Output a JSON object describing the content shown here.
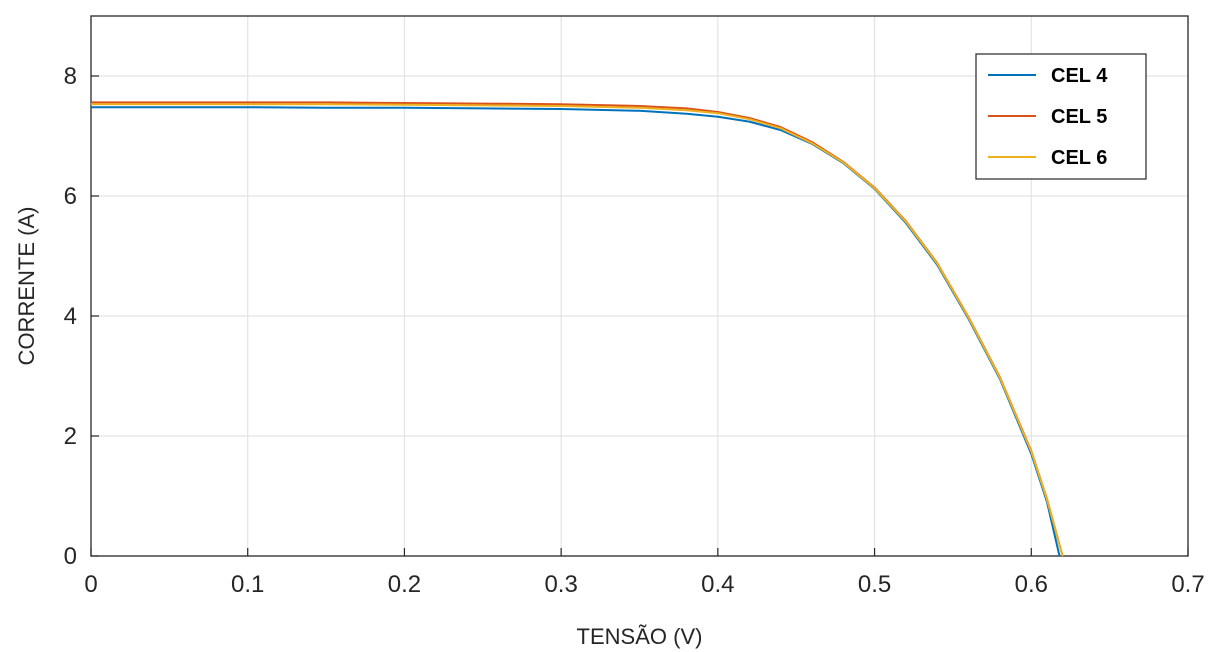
{
  "chart_data": {
    "type": "line",
    "xlabel": "TENSÃO (V)",
    "ylabel": "CORRENTE (A)",
    "xlim": [
      0,
      0.7
    ],
    "ylim": [
      0,
      9
    ],
    "xticks": [
      0,
      0.1,
      0.2,
      0.3,
      0.4,
      0.5,
      0.6,
      0.7
    ],
    "yticks": [
      0,
      2,
      4,
      6,
      8
    ],
    "xtick_labels": [
      "0",
      "0.1",
      "0.2",
      "0.3",
      "0.4",
      "0.5",
      "0.6",
      "0.7"
    ],
    "ytick_labels": [
      "0",
      "2",
      "4",
      "6",
      "8"
    ],
    "grid": true,
    "legend_position": "top-right",
    "series": [
      {
        "name": "CEL 4",
        "color": "#0072BD",
        "x": [
          0,
          0.05,
          0.1,
          0.15,
          0.2,
          0.25,
          0.3,
          0.35,
          0.38,
          0.4,
          0.42,
          0.44,
          0.46,
          0.48,
          0.5,
          0.52,
          0.54,
          0.56,
          0.58,
          0.6,
          0.61,
          0.618
        ],
        "y": [
          7.48,
          7.48,
          7.48,
          7.47,
          7.47,
          7.46,
          7.45,
          7.42,
          7.37,
          7.32,
          7.24,
          7.1,
          6.87,
          6.55,
          6.12,
          5.55,
          4.85,
          3.95,
          2.95,
          1.7,
          0.9,
          0
        ]
      },
      {
        "name": "CEL 5",
        "color": "#D95319",
        "x": [
          0,
          0.05,
          0.1,
          0.15,
          0.2,
          0.25,
          0.3,
          0.35,
          0.38,
          0.4,
          0.42,
          0.44,
          0.46,
          0.48,
          0.5,
          0.52,
          0.54,
          0.56,
          0.58,
          0.6,
          0.61,
          0.62
        ],
        "y": [
          7.56,
          7.56,
          7.56,
          7.56,
          7.55,
          7.54,
          7.53,
          7.5,
          7.46,
          7.4,
          7.3,
          7.15,
          6.9,
          6.57,
          6.14,
          5.58,
          4.88,
          3.98,
          2.98,
          1.75,
          0.95,
          0
        ]
      },
      {
        "name": "CEL 6",
        "color": "#EDB120",
        "x": [
          0,
          0.05,
          0.1,
          0.15,
          0.2,
          0.25,
          0.3,
          0.35,
          0.38,
          0.4,
          0.42,
          0.44,
          0.46,
          0.48,
          0.5,
          0.52,
          0.54,
          0.56,
          0.58,
          0.6,
          0.61,
          0.62
        ],
        "y": [
          7.53,
          7.53,
          7.53,
          7.53,
          7.52,
          7.51,
          7.5,
          7.47,
          7.43,
          7.38,
          7.28,
          7.13,
          6.88,
          6.56,
          6.13,
          5.57,
          4.87,
          3.97,
          2.97,
          1.74,
          0.94,
          0
        ]
      }
    ]
  }
}
